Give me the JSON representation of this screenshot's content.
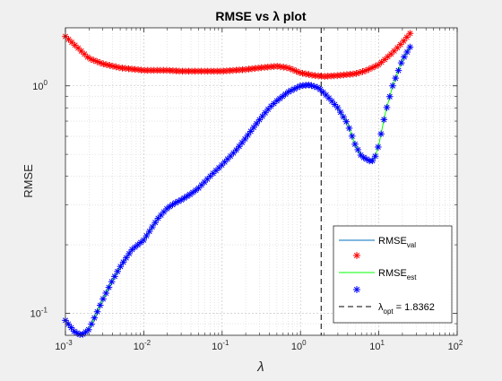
{
  "chart_data": {
    "type": "scatter",
    "title": "RMSE vs λ plot",
    "xlabel": "λ",
    "ylabel": "RMSE",
    "xscale": "log",
    "yscale": "log",
    "xlim": [
      0.001,
      100
    ],
    "ylim": [
      0.08,
      1.8
    ],
    "grid": true,
    "minor_grid": true,
    "x_ticks": [
      {
        "value": 0.001,
        "base": "10",
        "exp": "-3"
      },
      {
        "value": 0.01,
        "base": "10",
        "exp": "-2"
      },
      {
        "value": 0.1,
        "base": "10",
        "exp": "-1"
      },
      {
        "value": 1,
        "base": "10",
        "exp": "0"
      },
      {
        "value": 10,
        "base": "10",
        "exp": "1"
      },
      {
        "value": 100,
        "base": "10",
        "exp": "2"
      }
    ],
    "y_ticks": [
      {
        "value": 0.1,
        "base": "10",
        "exp": "-1"
      },
      {
        "value": 1,
        "base": "10",
        "exp": "0"
      }
    ],
    "lambda_opt": 1.8362,
    "legend_position": "bottom-right",
    "legend": [
      {
        "kind": "line",
        "color": "#0072bd",
        "base": "RMSE",
        "sub": "val",
        "after": ""
      },
      {
        "kind": "marker",
        "marker": "*",
        "color": "#ff0000"
      },
      {
        "kind": "line",
        "color": "#00ff00",
        "base": "RMSE",
        "sub": "est",
        "after": ""
      },
      {
        "kind": "marker",
        "marker": "*",
        "color": "#0000ff"
      },
      {
        "kind": "dashed",
        "color": "#000000",
        "base": "λ",
        "sub": "opt",
        "after": " = 1.8362"
      }
    ],
    "series": [
      {
        "name": "RMSE_val",
        "line_color": "#0072bd",
        "marker_color": "#ff0000",
        "x": [
          0.001,
          0.0015,
          0.002,
          0.003,
          0.005,
          0.008,
          0.01,
          0.02,
          0.03,
          0.05,
          0.1,
          0.2,
          0.3,
          0.5,
          0.7,
          1.0,
          1.5,
          2.0,
          3.0,
          5.0,
          7.0,
          10.0,
          15.0,
          20.0,
          25.0
        ],
        "y": [
          1.65,
          1.45,
          1.32,
          1.25,
          1.2,
          1.18,
          1.17,
          1.17,
          1.16,
          1.16,
          1.16,
          1.18,
          1.2,
          1.22,
          1.2,
          1.14,
          1.11,
          1.1,
          1.11,
          1.13,
          1.17,
          1.24,
          1.4,
          1.55,
          1.7
        ]
      },
      {
        "name": "RMSE_est",
        "line_color": "#00ff00",
        "marker_color": "#0000ff",
        "x": [
          0.001,
          0.0013,
          0.0016,
          0.002,
          0.0025,
          0.003,
          0.004,
          0.005,
          0.007,
          0.01,
          0.015,
          0.02,
          0.025,
          0.03,
          0.04,
          0.05,
          0.07,
          0.1,
          0.15,
          0.2,
          0.3,
          0.4,
          0.5,
          0.7,
          1.0,
          1.3,
          1.7,
          2.2,
          3.0,
          4.0,
          5.0,
          6.0,
          7.5,
          8.0,
          9.0,
          10.0,
          12.0,
          15.0,
          20.0,
          25.0
        ],
        "y": [
          0.093,
          0.083,
          0.08,
          0.085,
          0.1,
          0.115,
          0.14,
          0.16,
          0.19,
          0.21,
          0.26,
          0.29,
          0.305,
          0.315,
          0.335,
          0.355,
          0.4,
          0.45,
          0.52,
          0.59,
          0.71,
          0.8,
          0.86,
          0.94,
          1.0,
          1.01,
          0.98,
          0.9,
          0.8,
          0.68,
          0.55,
          0.49,
          0.47,
          0.46,
          0.49,
          0.55,
          0.75,
          1.0,
          1.3,
          1.48
        ]
      }
    ]
  }
}
